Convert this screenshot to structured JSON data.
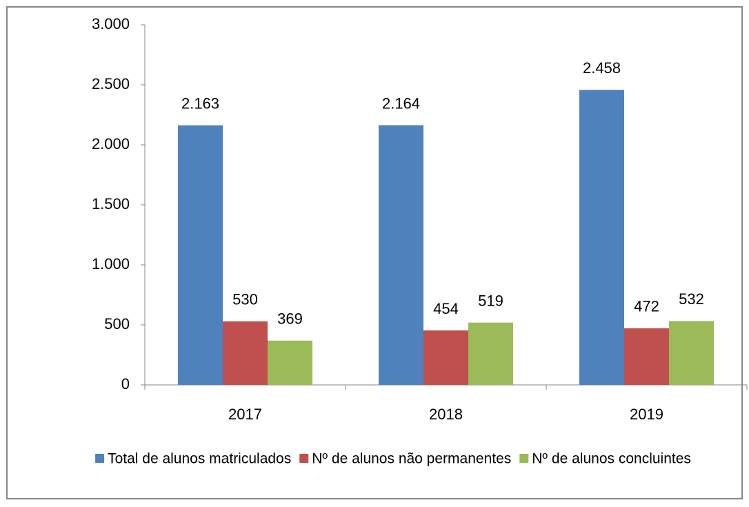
{
  "chart_data": {
    "type": "bar",
    "categories": [
      "2017",
      "2018",
      "2019"
    ],
    "series": [
      {
        "name": "Total de alunos matriculados",
        "color": "#4f81bd",
        "values": [
          2163,
          2164,
          2458
        ],
        "value_labels": [
          "2.163",
          "2.164",
          "2.458"
        ]
      },
      {
        "name": "Nº de alunos não permanentes",
        "color": "#c0504d",
        "values": [
          530,
          454,
          472
        ]
      },
      {
        "name": "Nº de alunos concluintes",
        "color": "#9bbb59",
        "values": [
          369,
          519,
          532
        ]
      }
    ],
    "ylim": [
      0,
      3000
    ],
    "yticks": [
      0,
      {
        "value": 500,
        "label": "500"
      },
      {
        "value": 1000,
        "label": "1.000"
      },
      {
        "value": 1500,
        "label": "1.500"
      },
      {
        "value": 2000,
        "label": "2.000"
      },
      {
        "value": 2500,
        "label": "2.500"
      },
      {
        "value": 3000,
        "label": "3.000"
      }
    ],
    "grid": false,
    "legend": "bottom"
  }
}
